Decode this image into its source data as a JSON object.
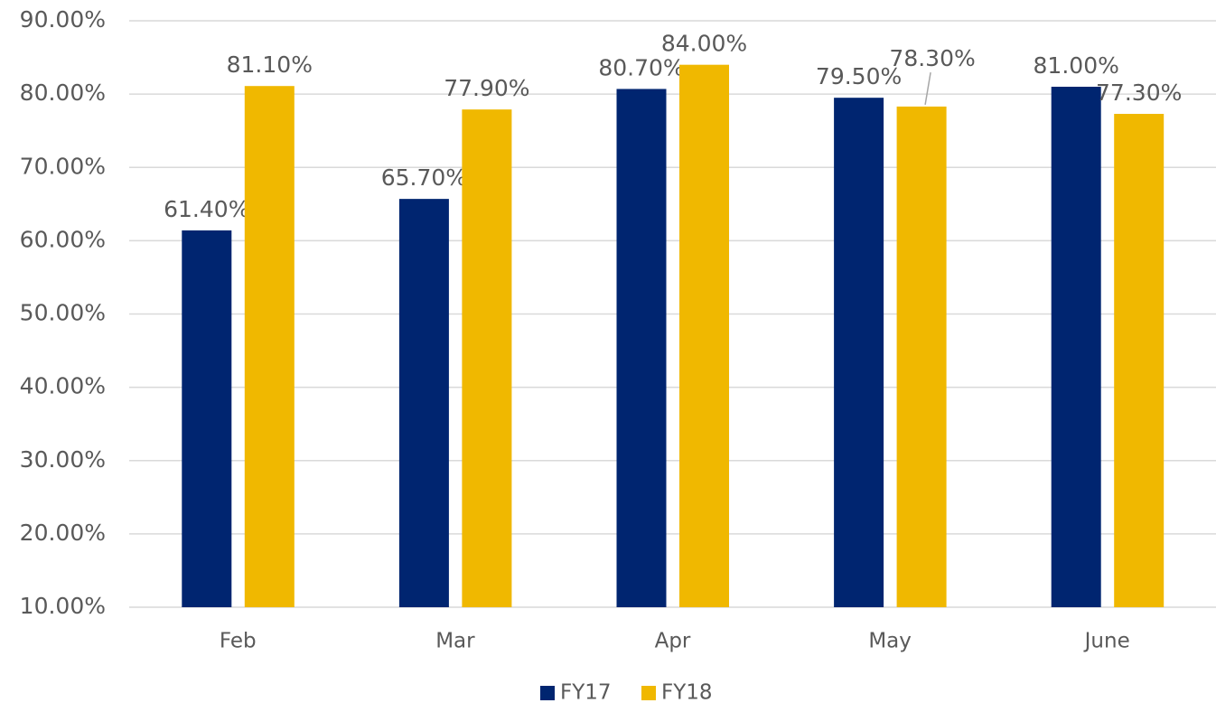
{
  "chart_data": {
    "type": "bar",
    "categories": [
      "Feb",
      "Mar",
      "Apr",
      "May",
      "June"
    ],
    "series": [
      {
        "name": "FY17",
        "color": "#002570",
        "values": [
          61.4,
          65.7,
          80.7,
          79.5,
          81.0
        ],
        "value_labels": [
          "61.40%",
          "65.70%",
          "80.70%",
          "79.50%",
          "81.00%"
        ]
      },
      {
        "name": "FY18",
        "color": "#f0b800",
        "values": [
          81.1,
          77.9,
          84.0,
          78.3,
          77.3
        ],
        "value_labels": [
          "81.10%",
          "77.90%",
          "84.00%",
          "78.30%",
          "77.30%"
        ]
      }
    ],
    "ylim": [
      10,
      90
    ],
    "yticks": [
      {
        "value": 10,
        "label": "10.00%"
      },
      {
        "value": 20,
        "label": "20.00%"
      },
      {
        "value": 30,
        "label": "30.00%"
      },
      {
        "value": 40,
        "label": "40.00%"
      },
      {
        "value": 50,
        "label": "50.00%"
      },
      {
        "value": 60,
        "label": "60.00%"
      },
      {
        "value": 70,
        "label": "70.00%"
      },
      {
        "value": 80,
        "label": "80.00%"
      },
      {
        "value": 90,
        "label": "90.00%"
      }
    ],
    "grid": true,
    "legend": "bottom"
  }
}
